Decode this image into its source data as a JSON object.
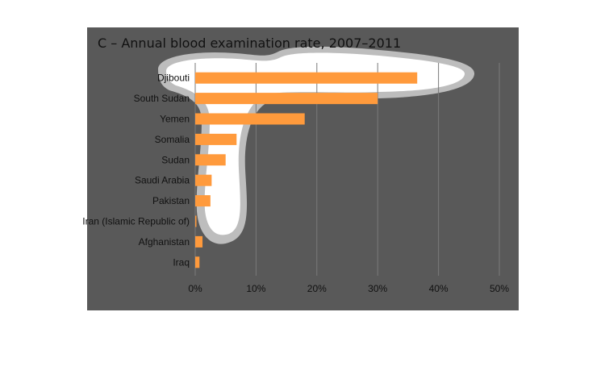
{
  "chart_data": {
    "type": "bar",
    "orientation": "horizontal",
    "title": "C – Annual blood examination rate, 2007–2011",
    "categories": [
      "Djibouti",
      "South Sudan",
      "Yemen",
      "Somalia",
      "Sudan",
      "Saudi Arabia",
      "Pakistan",
      "Iran (Islamic Republic of)",
      "Afghanistan",
      "Iraq"
    ],
    "values": [
      36.5,
      30,
      18,
      6.8,
      5,
      2.7,
      2.5,
      0.2,
      1.2,
      0.7
    ],
    "xlim": [
      0,
      50
    ],
    "xticks": [
      "0%",
      "10%",
      "20%",
      "30%",
      "40%",
      "50%"
    ],
    "xlabel": "",
    "ylabel": "",
    "grid": "vertical",
    "colors": {
      "bar": "#FF9A3C",
      "panel": "#595959",
      "grid": "#7a7a7a",
      "highlight": "#ffffff",
      "highlight_edge": "#bdbdbd"
    }
  }
}
